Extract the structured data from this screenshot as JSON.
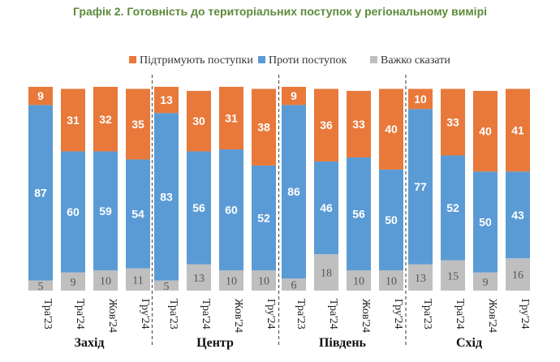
{
  "chart_data": {
    "type": "bar",
    "stacked": true,
    "title": "Графік 2. Готовність до територіальних поступок у регіональному вимірі",
    "legend_position": "top-right",
    "ylim": [
      0,
      101
    ],
    "colors": {
      "support": "#e8793a",
      "against": "#5b9bd5",
      "hard": "#bfbfbf"
    },
    "groups": [
      {
        "name": "Захід",
        "categories": [
          "Тра'23",
          "Тра'24",
          "Жов'24",
          "Гру'24"
        ]
      },
      {
        "name": "Центр",
        "categories": [
          "Тра'23",
          "Тра'24",
          "Жов'24",
          "Гру'24"
        ]
      },
      {
        "name": "Південь",
        "categories": [
          "Тра'23",
          "Тра'24",
          "Жов'24",
          "Гру'24"
        ]
      },
      {
        "name": "Схід",
        "categories": [
          "Тра'23",
          "Тра'24",
          "Жов'24",
          "Гру'24"
        ]
      }
    ],
    "series": [
      {
        "key": "hard",
        "name": "Важко сказати",
        "values": [
          5,
          9,
          10,
          11,
          5,
          13,
          10,
          10,
          6,
          18,
          10,
          10,
          13,
          15,
          9,
          16
        ]
      },
      {
        "key": "against",
        "name": "Проти поступок",
        "values": [
          87,
          60,
          59,
          54,
          83,
          56,
          60,
          52,
          86,
          46,
          56,
          50,
          77,
          52,
          50,
          43
        ]
      },
      {
        "key": "support",
        "name": "Підтримують поступки",
        "values": [
          9,
          31,
          32,
          35,
          13,
          30,
          31,
          38,
          9,
          36,
          33,
          40,
          10,
          33,
          40,
          41
        ]
      }
    ],
    "legend_order": [
      "support",
      "against",
      "hard"
    ]
  }
}
